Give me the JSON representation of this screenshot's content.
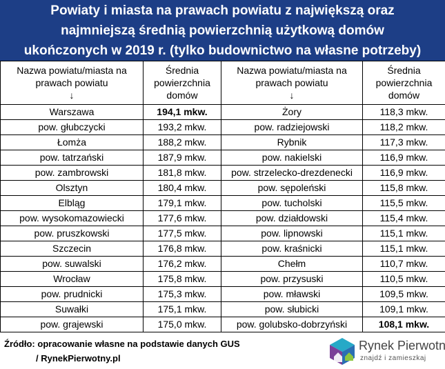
{
  "title_lines": [
    "Powiaty i miasta na prawach powiatu z największą oraz",
    "najmniejszą średnią powierzchnią użytkową domów",
    "ukończonych w 2019 r. (tylko budownictwo na własne potrzeby)"
  ],
  "headers": {
    "name_line1": "Nazwa powiatu/miasta na",
    "name_line2": "prawach powiatu",
    "avg_line1": "Średnia",
    "avg_line2": "powierzchnia",
    "avg_line3": "domów",
    "arrow": "↓"
  },
  "rows": [
    {
      "left_name": "Warszawa",
      "left_value": "194,1 mkw.",
      "right_name": "Żory",
      "right_value": "118,3 mkw."
    },
    {
      "left_name": "pow. głubczycki",
      "left_value": "193,2 mkw.",
      "right_name": "pow. radziejowski",
      "right_value": "118,2 mkw."
    },
    {
      "left_name": "Łomża",
      "left_value": "188,2 mkw.",
      "right_name": "Rybnik",
      "right_value": "117,3 mkw."
    },
    {
      "left_name": "pow. tatrzański",
      "left_value": "187,9 mkw.",
      "right_name": "pow. nakielski",
      "right_value": "116,9 mkw."
    },
    {
      "left_name": "pow. zambrowski",
      "left_value": "181,8 mkw.",
      "right_name": "pow. strzelecko-drezdenecki",
      "right_value": "116,9 mkw."
    },
    {
      "left_name": "Olsztyn",
      "left_value": "180,4 mkw.",
      "right_name": "pow. sępoleński",
      "right_value": "115,8 mkw."
    },
    {
      "left_name": "Elbląg",
      "left_value": "179,1 mkw.",
      "right_name": "pow. tucholski",
      "right_value": "115,5 mkw."
    },
    {
      "left_name": "pow. wysokomazowiecki",
      "left_value": "177,6 mkw.",
      "right_name": "pow. działdowski",
      "right_value": "115,4 mkw."
    },
    {
      "left_name": "pow. pruszkowski",
      "left_value": "177,5 mkw.",
      "right_name": "pow. lipnowski",
      "right_value": "115,1 mkw."
    },
    {
      "left_name": "Szczecin",
      "left_value": "176,8 mkw.",
      "right_name": "pow. kraśnicki",
      "right_value": "115,1 mkw."
    },
    {
      "left_name": "pow. suwalski",
      "left_value": "176,2 mkw.",
      "right_name": "Chełm",
      "right_value": "110,7 mkw."
    },
    {
      "left_name": "Wrocław",
      "left_value": "175,8 mkw.",
      "right_name": "pow. przysuski",
      "right_value": "110,5 mkw."
    },
    {
      "left_name": "pow. prudnicki",
      "left_value": "175,3 mkw.",
      "right_name": "pow. mławski",
      "right_value": "109,5 mkw."
    },
    {
      "left_name": "Suwałki",
      "left_value": "175,1 mkw.",
      "right_name": "pow. słubicki",
      "right_value": "109,1 mkw."
    },
    {
      "left_name": "pow. grajewski",
      "left_value": "175,0 mkw.",
      "right_name": "pow. golubsko-dobrzyński",
      "right_value": "108,1 mkw."
    }
  ],
  "bold_cells": {
    "max_row": 0,
    "min_row": 14
  },
  "source": {
    "line1": "Źródło: opracowanie własne na podstawie danych GUS",
    "line2": "/ RynekPierwotny.pl"
  },
  "logo": {
    "brand": "Rynek Pierwotny",
    "tagline": "znajdź i zamieszkaj",
    "icon": "house-cube-icon"
  },
  "colors": {
    "title_bg": "#1d3e86",
    "logo_blue": "#2a6fb3",
    "logo_purple": "#7b3f98",
    "logo_teal": "#27a9c7",
    "logo_green": "#8cc63f"
  }
}
